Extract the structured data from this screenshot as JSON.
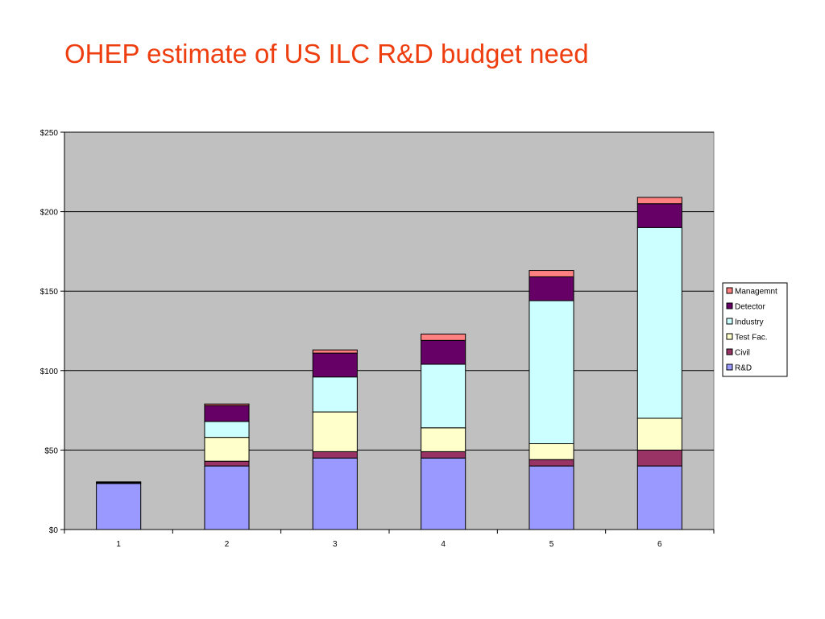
{
  "slide": {
    "title": "OHEP estimate of US ILC R&D budget need"
  },
  "chart_data": {
    "type": "bar",
    "stacked": true,
    "title": "OHEP estimate of US ILC R&D budget need",
    "xlabel": "",
    "ylabel": "",
    "categories": [
      "1",
      "2",
      "3",
      "4",
      "5",
      "6"
    ],
    "ylim": [
      0,
      250
    ],
    "yticks": [
      0,
      50,
      100,
      150,
      200,
      250
    ],
    "ytick_labels": [
      "$0",
      "$50",
      "$100",
      "$150",
      "$200",
      "$250"
    ],
    "grid": true,
    "legend_position": "right",
    "plot_background": "#c0c0c0",
    "series": [
      {
        "name": "R&D",
        "color": "#9999ff",
        "values": [
          29,
          40,
          45,
          45,
          40,
          40
        ]
      },
      {
        "name": "Civil",
        "color": "#993366",
        "values": [
          0.5,
          3,
          4,
          4,
          4,
          10
        ]
      },
      {
        "name": "Test Fac.",
        "color": "#ffffcc",
        "values": [
          0,
          15,
          25,
          15,
          10,
          20
        ]
      },
      {
        "name": "Industry",
        "color": "#ccffff",
        "values": [
          0,
          10,
          22,
          40,
          90,
          120
        ]
      },
      {
        "name": "Detector",
        "color": "#660066",
        "values": [
          0,
          10,
          15,
          15,
          15,
          15
        ]
      },
      {
        "name": "Managemnt",
        "color": "#ff8080",
        "values": [
          0.5,
          1,
          2,
          4,
          4,
          4
        ]
      }
    ]
  }
}
